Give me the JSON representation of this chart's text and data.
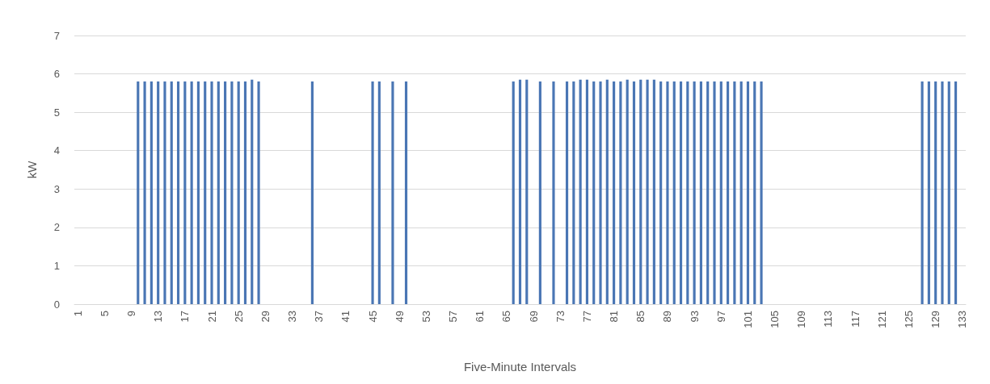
{
  "chart_data": {
    "type": "bar",
    "xlabel": "Five-Minute Intervals",
    "ylabel": "kW",
    "categories": [
      "1",
      null,
      null,
      null,
      "5",
      null,
      null,
      null,
      "9",
      null,
      null,
      null,
      "13",
      null,
      null,
      null,
      "17",
      null,
      null,
      null,
      "21",
      null,
      null,
      null,
      "25",
      null,
      null,
      null,
      "29",
      null,
      null,
      null,
      "33",
      null,
      null,
      null,
      "37",
      null,
      null,
      null,
      "41",
      null,
      null,
      null,
      "45",
      null,
      null,
      null,
      "49",
      null,
      null,
      null,
      "53",
      null,
      null,
      null,
      "57",
      null,
      null,
      null,
      "61",
      null,
      null,
      null,
      "65",
      null,
      null,
      null,
      "69",
      null,
      null,
      null,
      "73",
      null,
      null,
      null,
      "77",
      null,
      null,
      null,
      "81",
      null,
      null,
      null,
      "85",
      null,
      null,
      null,
      "89",
      null,
      null,
      null,
      "93",
      null,
      null,
      null,
      "97",
      null,
      null,
      null,
      "101",
      null,
      null,
      null,
      "105",
      null,
      null,
      null,
      "109",
      null,
      null,
      null,
      "113",
      null,
      null,
      null,
      "117",
      null,
      null,
      null,
      "121",
      null,
      null,
      null,
      "125",
      null,
      null,
      null,
      "129",
      null,
      null,
      null,
      "133"
    ],
    "values": [
      0,
      0,
      0,
      0,
      0,
      0,
      0,
      0,
      0,
      5.8,
      5.8,
      5.8,
      5.8,
      5.8,
      5.8,
      5.8,
      5.8,
      5.8,
      5.8,
      5.8,
      5.8,
      5.8,
      5.8,
      5.8,
      5.8,
      5.8,
      5.85,
      5.8,
      0,
      0,
      0,
      0,
      0,
      0,
      0,
      5.8,
      0,
      0,
      0,
      0,
      0,
      0,
      0,
      0,
      5.8,
      5.8,
      0,
      5.8,
      0,
      5.8,
      0,
      0,
      0,
      0,
      0,
      0,
      0,
      0,
      0,
      0,
      0,
      0,
      0,
      0,
      0,
      5.8,
      5.85,
      5.85,
      0,
      5.8,
      0,
      5.8,
      0,
      5.8,
      5.8,
      5.85,
      5.85,
      5.8,
      5.8,
      5.85,
      5.8,
      5.8,
      5.85,
      5.8,
      5.85,
      5.85,
      5.85,
      5.8,
      5.8,
      5.8,
      5.8,
      5.8,
      5.8,
      5.8,
      5.8,
      5.8,
      5.8,
      5.8,
      5.8,
      5.8,
      5.8,
      5.8,
      5.8,
      0,
      0,
      0,
      0,
      0,
      0,
      0,
      0,
      0,
      0,
      0,
      0,
      0,
      0,
      0,
      0,
      0,
      0,
      0,
      0,
      0,
      0,
      0,
      5.8,
      5.8,
      5.8,
      5.8,
      5.8,
      5.8,
      0
    ],
    "color": "#4a76b4",
    "ylim": [
      0,
      7
    ],
    "yticks": [
      0,
      1,
      2,
      3,
      4,
      5,
      6,
      7
    ],
    "grid": "y"
  }
}
